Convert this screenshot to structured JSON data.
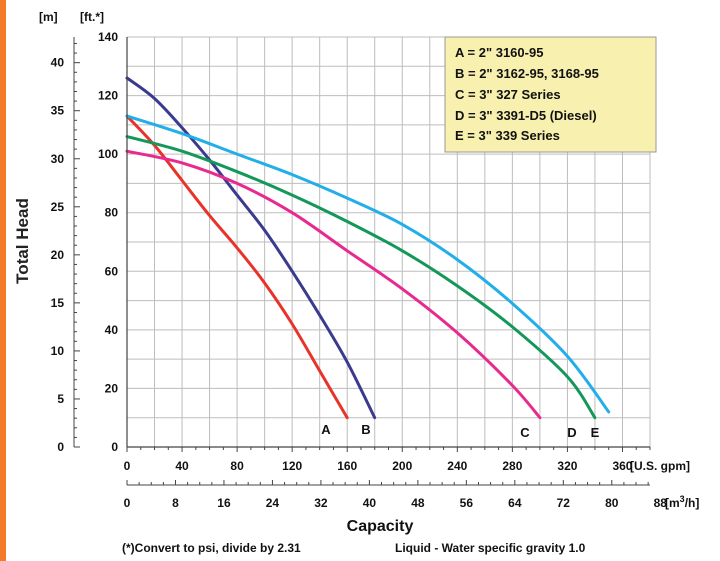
{
  "chart_data": {
    "type": "line",
    "ylabel": "Total Head",
    "xlabel": "Capacity",
    "footnote_left": "(*)Convert to psi, divide by 2.31",
    "footnote_right": "Liquid - Water specific gravity 1.0",
    "y_unit_m": "[m]",
    "y_unit_ft": "[ft.*]",
    "x_unit_gpm": "[U.S. gpm]",
    "x_unit_m3h_base": "[m",
    "x_unit_m3h_sup": "3",
    "x_unit_m3h_tail": "/h]",
    "x_gpm": {
      "range": [
        0,
        380
      ],
      "ticks": [
        0,
        40,
        80,
        120,
        160,
        200,
        240,
        280,
        320,
        360
      ]
    },
    "x_m3h": {
      "ticks": [
        0,
        8,
        16,
        24,
        32,
        40,
        48,
        56,
        64,
        72,
        80,
        88
      ]
    },
    "y_ft": {
      "range": [
        0,
        140
      ],
      "ticks": [
        0,
        20,
        40,
        60,
        80,
        100,
        120,
        140
      ]
    },
    "y_m": {
      "ticks": [
        0,
        5,
        10,
        15,
        20,
        25,
        30,
        35,
        40
      ]
    },
    "grid": true,
    "legend_position": "top-right",
    "legend": [
      "A = 2\" 3160-95",
      "B = 2\" 3162-95, 3168-95",
      "C = 3\" 327 Series",
      "D = 3\" 3391-D5 (Diesel)",
      "E = 3\" 339 Series"
    ],
    "series": [
      {
        "name": "A",
        "color": "#e8332a",
        "x": [
          0,
          20,
          40,
          60,
          80,
          100,
          120,
          140,
          160
        ],
        "y": [
          113,
          103,
          91,
          79,
          68,
          56,
          42,
          26,
          10
        ]
      },
      {
        "name": "B",
        "color": "#3a3a8f",
        "x": [
          0,
          20,
          40,
          60,
          80,
          100,
          120,
          140,
          160,
          180
        ],
        "y": [
          126,
          119,
          109,
          98,
          86,
          74,
          60,
          45,
          29,
          10
        ]
      },
      {
        "name": "C",
        "color": "#e8298f",
        "x": [
          0,
          40,
          80,
          120,
          160,
          200,
          240,
          280,
          300
        ],
        "y": [
          101,
          97,
          90,
          80,
          67,
          54,
          39,
          21,
          10
        ]
      },
      {
        "name": "D",
        "color": "#13985a",
        "x": [
          0,
          40,
          80,
          120,
          160,
          200,
          240,
          280,
          320,
          340
        ],
        "y": [
          106,
          101,
          94,
          86,
          77,
          67,
          55,
          41,
          24,
          10
        ]
      },
      {
        "name": "E",
        "color": "#21aee9",
        "x": [
          0,
          40,
          80,
          120,
          160,
          200,
          240,
          280,
          320,
          350
        ],
        "y": [
          113,
          107,
          100,
          93,
          85,
          76,
          64,
          49,
          31,
          12
        ]
      }
    ]
  },
  "colors": {
    "side_bar": "#f47b2a",
    "legend_bg": "#f7f0ae",
    "grid": "#bdbdbd"
  }
}
